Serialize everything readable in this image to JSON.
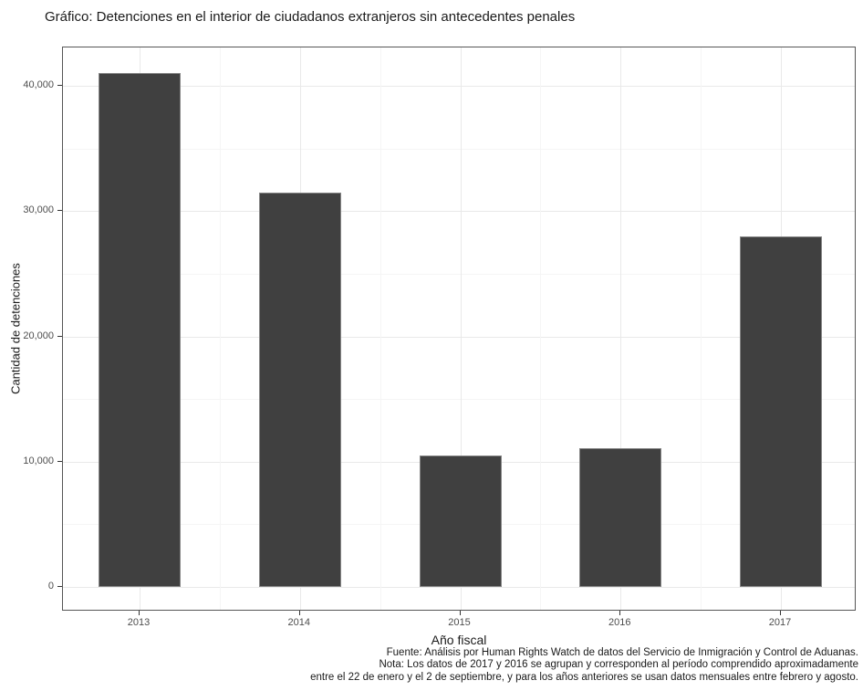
{
  "title": "Gráfico: Detenciones en el interior de ciudadanos extranjeros sin antecedentes penales",
  "chart_data": {
    "type": "bar",
    "title": "Gráfico: Detenciones en el interior de ciudadanos extranjeros sin antecedentes penales",
    "categories": [
      "2013",
      "2014",
      "2015",
      "2016",
      "2017"
    ],
    "values": [
      41000,
      31500,
      10500,
      11100,
      28000
    ],
    "xlabel": "Año fiscal",
    "ylabel": "Cantidad de detenciones",
    "ylim": [
      -2000,
      43000
    ],
    "yticks": [
      0,
      10000,
      20000,
      30000,
      40000
    ],
    "ytick_labels": [
      "0",
      "10,000",
      "20,000",
      "30,000",
      "40,000"
    ],
    "minor_ytick_step": 5000,
    "grid": "major and minor, light gray, on white panel",
    "legend": "none",
    "bar_fill": "#404040",
    "bar_border": "#868686"
  },
  "caption": {
    "lines": [
      "Fuente: Análisis por Human Rights Watch de datos del Servicio de Inmigración y Control de Aduanas.",
      "Nota: Los datos de 2017 y 2016 se agrupan y corresponden al período comprendido aproximadamente",
      "entre el 22 de enero y el 2 de septiembre, y para los años anteriores se usan datos mensuales entre febrero y agosto."
    ]
  },
  "colors": {
    "panel_border": "#565656",
    "grid_major": "#e9e9e9",
    "grid_minor": "#f5f5f5",
    "tick_label": "#4d4d4d",
    "text": "#1a1a1a"
  }
}
